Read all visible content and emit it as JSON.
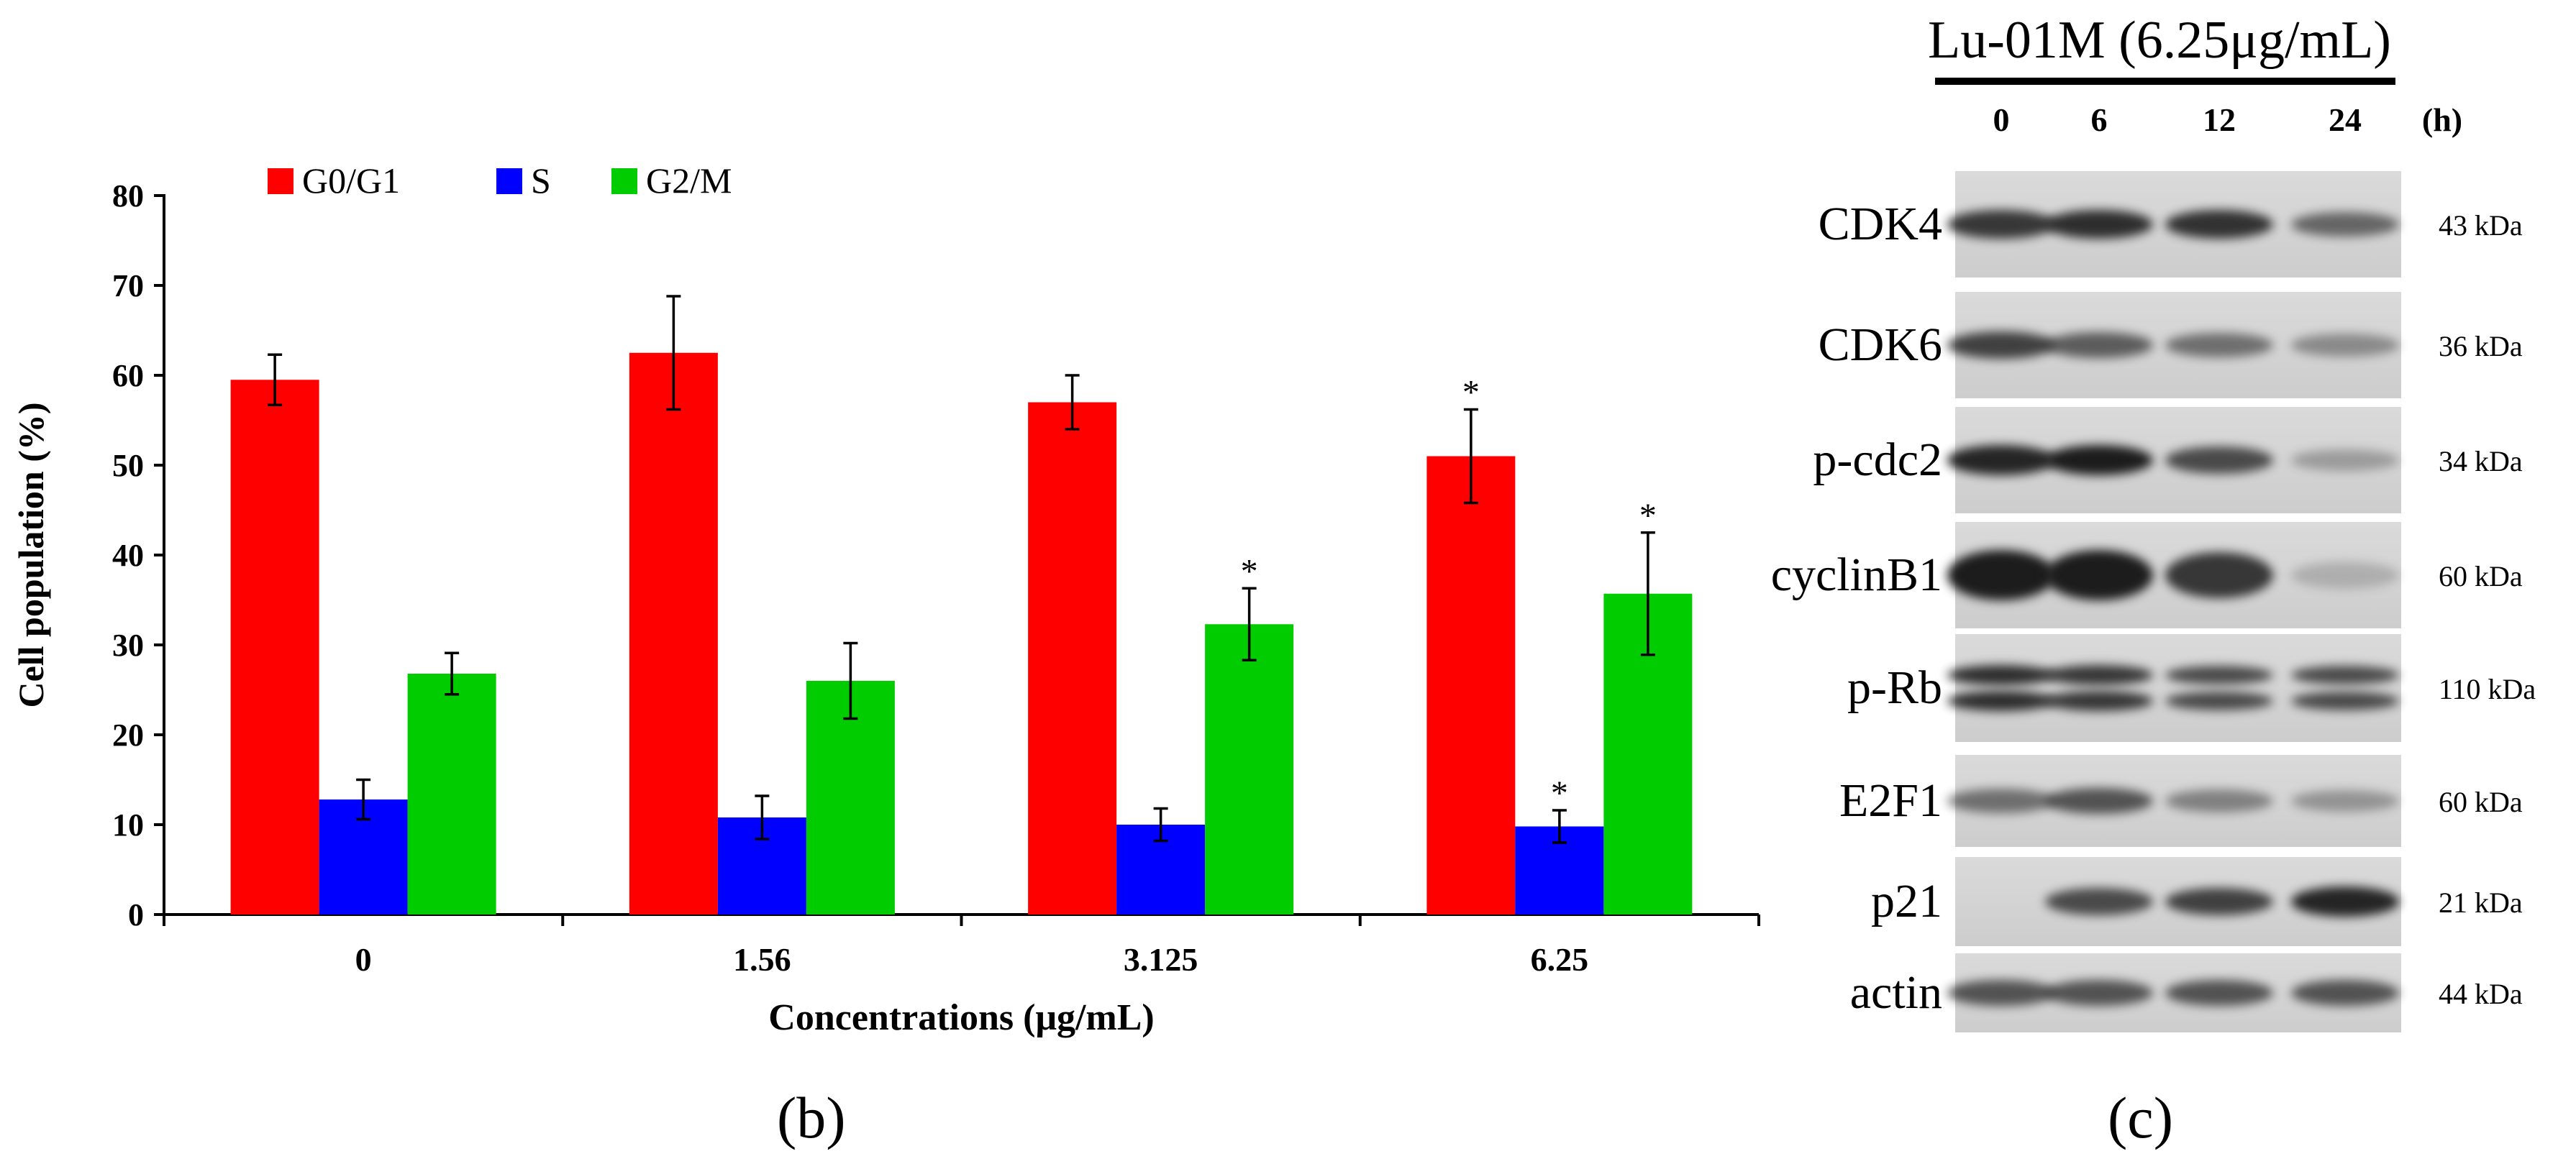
{
  "panel_labels": {
    "b": "(b)",
    "c": "(c)"
  },
  "chart_data": {
    "type": "bar",
    "title": "",
    "xlabel": "Concentrations (μg/mL)",
    "ylabel": "Cell population (%)",
    "ylim": [
      0,
      80
    ],
    "yticks": [
      0,
      10,
      20,
      30,
      40,
      50,
      60,
      70,
      80
    ],
    "categories": [
      "0",
      "1.56",
      "3.125",
      "6.25"
    ],
    "legend_position": "top-left",
    "grid": false,
    "series": [
      {
        "name": "G0/G1",
        "color": "#ff0000",
        "values": [
          59.5,
          62.5,
          57,
          51
        ],
        "errors": [
          2.8,
          6.3,
          3,
          5.2
        ],
        "significant": [
          false,
          false,
          false,
          true
        ]
      },
      {
        "name": "S",
        "color": "#0000ff",
        "values": [
          12.8,
          10.8,
          10,
          9.8
        ],
        "errors": [
          2.2,
          2.4,
          1.8,
          1.8
        ],
        "significant": [
          false,
          false,
          false,
          true
        ]
      },
      {
        "name": "G2/M",
        "color": "#00cc00",
        "values": [
          26.8,
          26,
          32.3,
          35.7
        ],
        "errors": [
          2.3,
          4.2,
          4,
          6.8
        ],
        "significant": [
          false,
          false,
          true,
          true
        ]
      }
    ],
    "significance_marker": "*"
  },
  "western_blot": {
    "treatment_label": "Lu-01M (6.25μg/mL)",
    "time_points": [
      "0",
      "6",
      "12",
      "24"
    ],
    "time_unit": "(h)",
    "proteins": [
      {
        "name": "CDK4",
        "mw": "43 kDa",
        "intensity": [
          0.85,
          0.9,
          0.88,
          0.6
        ]
      },
      {
        "name": "CDK6",
        "mw": "36 kDa",
        "intensity": [
          0.8,
          0.65,
          0.55,
          0.4
        ]
      },
      {
        "name": "p-cdc2",
        "mw": "34 kDa",
        "intensity": [
          0.95,
          1.0,
          0.75,
          0.3
        ]
      },
      {
        "name": "cyclinB1",
        "mw": "60 kDa",
        "intensity": [
          1.0,
          1.0,
          0.85,
          0.2
        ]
      },
      {
        "name": "p-Rb",
        "mw": "110 kDa",
        "intensity": [
          0.9,
          0.85,
          0.75,
          0.75
        ]
      },
      {
        "name": "E2F1",
        "mw": "60 kDa",
        "intensity": [
          0.55,
          0.7,
          0.45,
          0.35
        ]
      },
      {
        "name": "p21",
        "mw": "21 kDa",
        "intensity": [
          0.0,
          0.75,
          0.8,
          0.95
        ]
      },
      {
        "name": "actin",
        "mw": "44 kDa",
        "intensity": [
          0.7,
          0.7,
          0.7,
          0.7
        ]
      }
    ]
  }
}
